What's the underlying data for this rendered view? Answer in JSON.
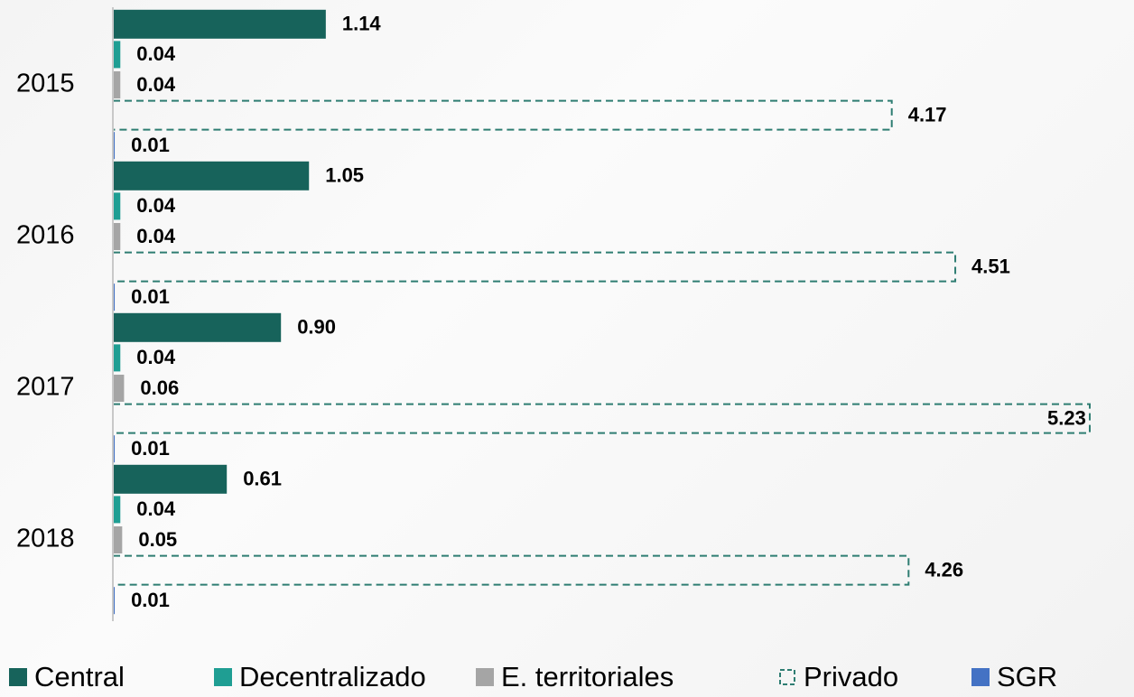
{
  "chart_data": {
    "type": "barh",
    "categories": [
      "2015",
      "2016",
      "2017",
      "2018"
    ],
    "series": [
      {
        "name": "Central",
        "color": "#17635b",
        "values": [
          1.14,
          1.05,
          0.9,
          0.61
        ],
        "value_labels": [
          "1.14",
          "1.05",
          "0.90",
          "0.61"
        ]
      },
      {
        "name": "Decentralizado",
        "color": "#1f9e93",
        "values": [
          0.04,
          0.04,
          0.04,
          0.04
        ],
        "value_labels": [
          "0.04",
          "0.04",
          "0.04",
          "0.04"
        ]
      },
      {
        "name": "E. territoriales",
        "color": "#a5a5a5",
        "values": [
          0.04,
          0.04,
          0.06,
          0.05
        ],
        "value_labels": [
          "0.04",
          "0.04",
          "0.06",
          "0.05"
        ]
      },
      {
        "name": "Privado",
        "color": "#2e7d72",
        "outline": "dashed",
        "values": [
          4.17,
          4.51,
          5.23,
          4.26
        ],
        "value_labels": [
          "4.17",
          "4.51",
          "5.23",
          "4.26"
        ]
      },
      {
        "name": "SGR",
        "color": "#4472c4",
        "values": [
          0.01,
          0.01,
          0.01,
          0.01
        ],
        "value_labels": [
          "0.01",
          "0.01",
          "0.01",
          "0.01"
        ]
      }
    ],
    "legend": "bottom"
  }
}
